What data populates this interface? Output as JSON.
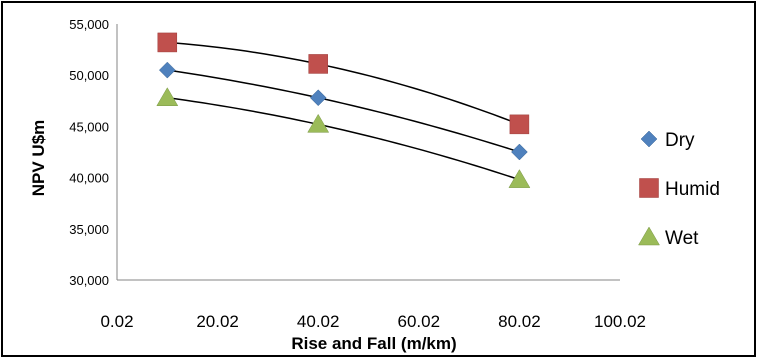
{
  "chart_data": {
    "type": "scatter",
    "title": "",
    "xlabel": "Rise and Fall (m/km)",
    "ylabel": "NPV U$m",
    "xlim": [
      0.02,
      100.02
    ],
    "ylim": [
      30000,
      55000
    ],
    "x_ticks": [
      "0.02",
      "20.02",
      "40.02",
      "60.02",
      "80.02",
      "100.02"
    ],
    "y_ticks": [
      "30,000",
      "35,000",
      "40,000",
      "45,000",
      "50,000",
      "55,000"
    ],
    "grid": false,
    "legend_position": "right",
    "trendline": "polynomial",
    "series": [
      {
        "name": "Dry",
        "marker": "diamond",
        "color": "#4f81bd",
        "x": [
          10.02,
          40.02,
          80.02
        ],
        "y": [
          50500,
          47800,
          42500
        ]
      },
      {
        "name": "Humid",
        "marker": "square",
        "color": "#c0504d",
        "x": [
          10.02,
          40.02,
          80.02
        ],
        "y": [
          53200,
          51100,
          45200
        ]
      },
      {
        "name": "Wet",
        "marker": "triangle",
        "color": "#9bbb59",
        "x": [
          10.02,
          40.02,
          80.02
        ],
        "y": [
          47800,
          45200,
          39800
        ]
      }
    ]
  }
}
